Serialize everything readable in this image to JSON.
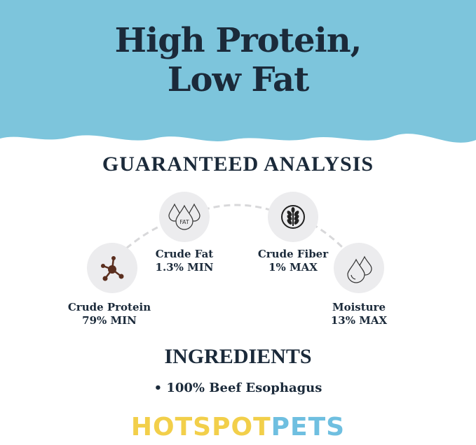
{
  "headline": {
    "line1": "High Protein,",
    "line2": "Low Fat"
  },
  "guaranteed_analysis": {
    "title": "GUARANTEED ANALYSIS",
    "items": [
      {
        "name": "Crude Protein",
        "value": "79% MIN",
        "icon": "molecule-icon"
      },
      {
        "name": "Crude Fat",
        "value": "1.3% MIN",
        "icon": "fat-drops-icon",
        "icon_text": "FAT"
      },
      {
        "name": "Crude Fiber",
        "value": "1% MAX",
        "icon": "wheat-icon"
      },
      {
        "name": "Moisture",
        "value": "13% MAX",
        "icon": "water-drops-icon"
      }
    ]
  },
  "ingredients": {
    "title": "INGREDIENTS",
    "items": [
      "• 100% Beef Esophagus"
    ]
  },
  "logo": {
    "part1": "HOTSPOT",
    "part2": "PETS"
  },
  "colors": {
    "banner": "#7dc5dc",
    "text": "#1b2a3a",
    "logo_yellow": "#f2cf4a",
    "logo_blue": "#6fbfe0",
    "circle": "#ececee"
  }
}
